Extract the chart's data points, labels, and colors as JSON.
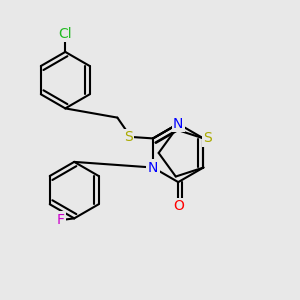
{
  "bg_color": "#e8e8e8",
  "bond_color": "#000000",
  "bond_width": 1.5,
  "figsize": [
    3.0,
    3.0
  ],
  "dpi": 100,
  "atom_colors": {
    "Cl": "#22bb22",
    "S": "#aaaa00",
    "N": "#0000ff",
    "O": "#ff0000",
    "F": "#cc00cc"
  }
}
